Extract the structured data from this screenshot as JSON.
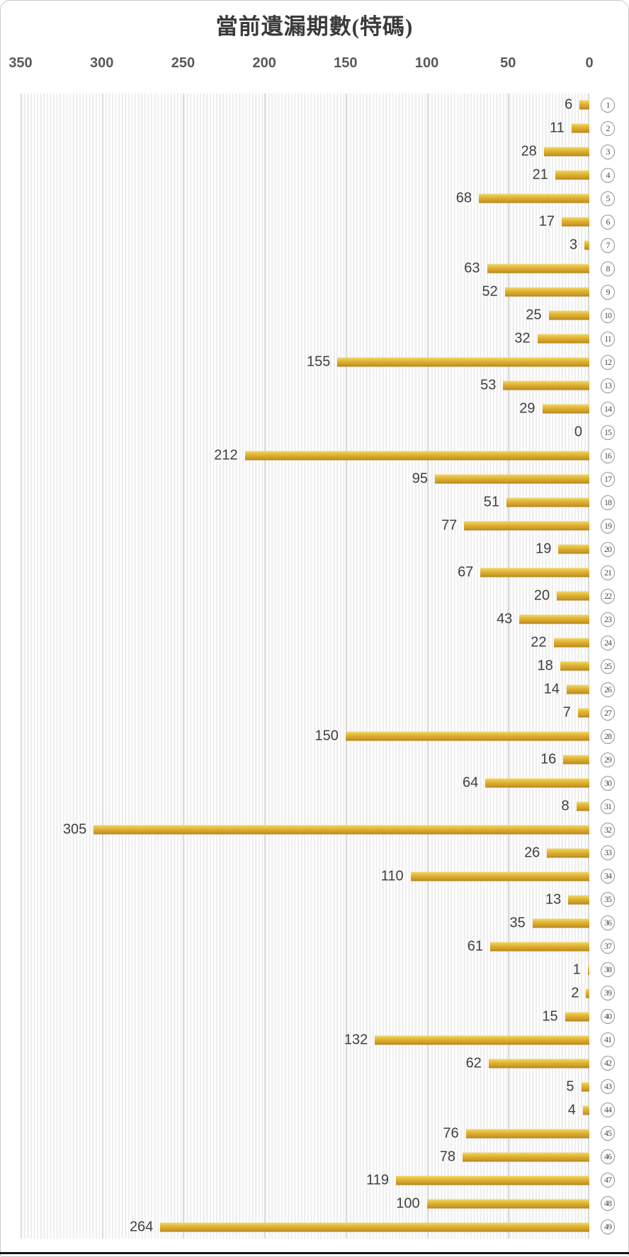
{
  "window": {
    "background": "#ffffff",
    "frame_border_color": "#c9c9c9",
    "bottom_edge_color": "#161616"
  },
  "chart_data": {
    "type": "bar",
    "orientation": "horizontal",
    "bars_anchored": "right",
    "title": "當前遺漏期數(特碼)",
    "title_color": "#3a3a3a",
    "categories": [
      1,
      2,
      3,
      4,
      5,
      6,
      7,
      8,
      9,
      10,
      11,
      12,
      13,
      14,
      15,
      16,
      17,
      18,
      19,
      20,
      21,
      22,
      23,
      24,
      25,
      26,
      27,
      28,
      29,
      30,
      31,
      32,
      33,
      34,
      35,
      36,
      37,
      38,
      39,
      40,
      41,
      42,
      43,
      44,
      45,
      46,
      47,
      48,
      49
    ],
    "category_style": "circled-number",
    "values": [
      6,
      11,
      28,
      21,
      68,
      17,
      3,
      63,
      52,
      25,
      32,
      155,
      53,
      29,
      0,
      212,
      95,
      51,
      77,
      19,
      67,
      20,
      43,
      22,
      18,
      14,
      7,
      150,
      16,
      64,
      8,
      305,
      26,
      110,
      13,
      35,
      61,
      1,
      2,
      15,
      132,
      62,
      5,
      4,
      76,
      78,
      119,
      100,
      264
    ],
    "x_axis": {
      "side": "top",
      "min": 0,
      "max": 350,
      "ticks": [
        350,
        300,
        250,
        200,
        150,
        100,
        50,
        0
      ],
      "direction": "values-increase-leftward",
      "tick_color": "#595959"
    },
    "value_label_color": "#3f3f3f",
    "bar_color": "#dcad2e",
    "bar_gradient_top": "#efd96d",
    "bar_gradient_bottom": "#b08218",
    "gridline_color": "#dadada",
    "plot_stripe_color": "#efeff0",
    "grid": "vertical-major",
    "legend": "none"
  }
}
